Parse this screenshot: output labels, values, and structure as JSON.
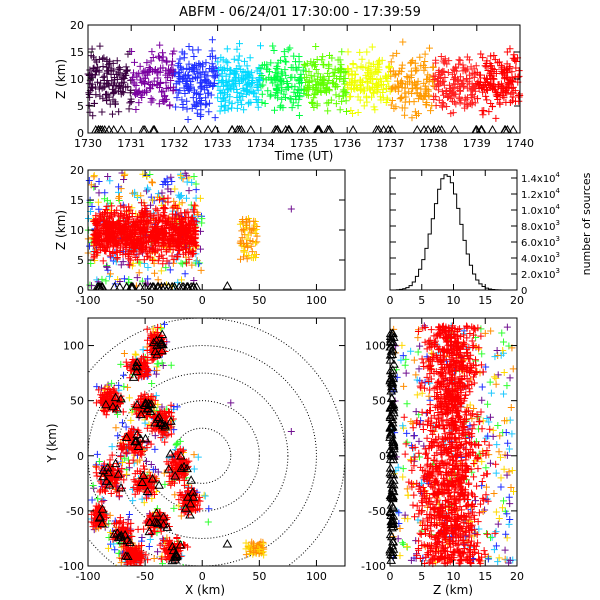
{
  "title": "ABFM - 06/24/01 17:30:00 - 17:39:59",
  "colors": {
    "time_ramp": [
      "#3a0040",
      "#7a00a0",
      "#2030ff",
      "#00d8ff",
      "#00ff40",
      "#60ff00",
      "#f0ff00",
      "#ff9a00",
      "#ff2020",
      "#ff0000"
    ],
    "red": "#ff0000",
    "orange": "#ff8c00",
    "yellow": "#ffd800",
    "green": "#30ff30",
    "cyan": "#20c8ff",
    "blue": "#2030ff",
    "purple": "#701090",
    "black": "#000000"
  },
  "chart_data": [
    {
      "id": "time_height",
      "type": "scatter",
      "xlabel": "Time (UT)",
      "ylabel": "Z (km)",
      "xlim": [
        1730,
        1740
      ],
      "ylim": [
        0,
        20
      ],
      "xticks": [
        "1730",
        "1731",
        "1732",
        "1733",
        "1734",
        "1735",
        "1736",
        "1737",
        "1738",
        "1739",
        "1740"
      ],
      "yticks": [
        "0",
        "5",
        "10",
        "15",
        "20"
      ],
      "point_color_by": "time",
      "ground_markers": "triangle"
    },
    {
      "id": "x_height",
      "type": "scatter",
      "xlabel": "",
      "ylabel": "Z (km)",
      "xlim": [
        -100,
        125
      ],
      "ylim": [
        0,
        20
      ],
      "xticks": [
        "-100",
        "-50",
        "0",
        "50",
        "100"
      ],
      "yticks": [
        "0",
        "5",
        "10",
        "15",
        "20"
      ],
      "clusters": [
        {
          "x": [
            -100,
            0
          ],
          "z": [
            1,
            19
          ],
          "color": "red"
        },
        {
          "x": [
            30,
            50
          ],
          "z": [
            5,
            12
          ],
          "color": "orange"
        }
      ],
      "outliers": [
        {
          "x": 78,
          "z": 13.5,
          "color": "purple"
        }
      ]
    },
    {
      "id": "height_histogram",
      "type": "bar",
      "xlabel": "",
      "ylabel": "number of sources",
      "xlim": [
        0,
        20
      ],
      "ylim": [
        0,
        15000
      ],
      "xticks": [
        "0",
        "5",
        "10",
        "15",
        "20"
      ],
      "yticks": [
        "0",
        "2.0x10",
        "4.0x10",
        "6.0x10",
        "8.0x10",
        "1.0x10",
        "1.2x10",
        "1.4x10"
      ],
      "ytick_exponents": [
        "",
        "3",
        "3",
        "3",
        "3",
        "4",
        "4",
        "4"
      ],
      "bins_km": [
        0,
        0.5,
        1,
        1.5,
        2,
        2.5,
        3,
        3.5,
        4,
        4.5,
        5,
        5.5,
        6,
        6.5,
        7,
        7.5,
        8,
        8.5,
        9,
        9.5,
        10,
        10.5,
        11,
        11.5,
        12,
        12.5,
        13,
        13.5,
        14,
        14.5,
        15,
        15.5,
        16,
        16.5,
        17,
        17.5,
        18,
        18.5,
        19,
        19.5
      ],
      "values": [
        0,
        0,
        30,
        80,
        150,
        300,
        550,
        1000,
        1700,
        2600,
        3800,
        5200,
        7000,
        8900,
        10800,
        12600,
        13900,
        14400,
        14200,
        13400,
        12000,
        10200,
        8200,
        6200,
        4500,
        3100,
        2000,
        1250,
        760,
        430,
        240,
        130,
        70,
        35,
        15,
        5,
        0,
        0,
        0,
        0
      ]
    },
    {
      "id": "plan_view",
      "type": "scatter",
      "xlabel": "X (km)",
      "ylabel": "Y (km)",
      "xlim": [
        -100,
        125
      ],
      "ylim": [
        -100,
        125
      ],
      "xticks": [
        "-100",
        "-50",
        "0",
        "50",
        "100"
      ],
      "yticks": [
        "-100",
        "-50",
        "0",
        "50",
        "100"
      ],
      "range_rings_km": [
        25,
        50,
        75,
        100,
        125
      ],
      "ring_center": [
        0,
        0
      ]
    },
    {
      "id": "z_y",
      "type": "scatter",
      "xlabel": "Z (km)",
      "ylabel": "",
      "xlim": [
        0,
        20
      ],
      "ylim": [
        -100,
        125
      ],
      "xticks": [
        "0",
        "5",
        "10",
        "15",
        "20"
      ],
      "yticks": [
        "-100",
        "-50",
        "0",
        "50",
        "100"
      ]
    }
  ]
}
